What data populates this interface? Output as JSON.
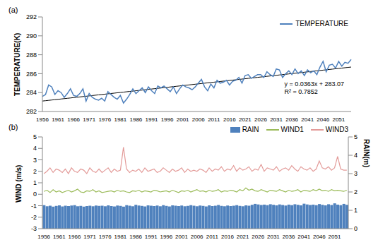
{
  "chart_data": [
    {
      "type": "line",
      "title": "(a)",
      "y_label": "TEMPERATURE(K)",
      "categories": [
        "1956",
        null,
        null,
        null,
        null,
        "1961",
        null,
        null,
        null,
        null,
        "1966",
        null,
        null,
        null,
        null,
        "1971",
        null,
        null,
        null,
        null,
        "1976",
        null,
        null,
        null,
        null,
        "1981",
        null,
        null,
        null,
        null,
        "1986",
        null,
        null,
        null,
        null,
        "1991",
        null,
        null,
        null,
        null,
        "1996",
        null,
        null,
        null,
        null,
        "2001",
        null,
        null,
        null,
        null,
        "2006",
        null,
        null,
        null,
        null,
        "2011",
        null,
        null,
        null,
        null,
        "2016",
        null,
        null,
        null,
        null,
        "2021",
        null,
        null,
        null,
        null,
        "2026",
        null,
        null,
        null,
        null,
        "2031",
        null,
        null,
        null,
        null,
        "2036",
        null,
        null,
        null,
        null,
        "2041",
        null,
        null,
        null,
        null,
        "2046",
        null,
        null,
        null,
        null,
        "2051",
        null,
        null,
        null,
        null
      ],
      "ylim": [
        282,
        292
      ],
      "yticks": [
        282,
        284,
        286,
        288,
        290,
        292
      ],
      "legend": "top-right",
      "series": [
        {
          "name": "TEMPERATURE",
          "color": "#4F81BD",
          "values": [
            283.6,
            283.8,
            284.8,
            284.6,
            283.8,
            284.2,
            284.0,
            283.5,
            283.9,
            284.4,
            283.7,
            283.6,
            283.9,
            284.4,
            283.1,
            283.9,
            283.5,
            283.3,
            283.2,
            283.4,
            283.1,
            284.1,
            283.8,
            283.5,
            283.3,
            283.7,
            282.9,
            283.3,
            283.8,
            284.4,
            283.9,
            284.2,
            284.5,
            284.0,
            284.6,
            284.2,
            283.9,
            284.7,
            284.5,
            284.7,
            284.4,
            284.1,
            284.6,
            283.9,
            284.4,
            284.8,
            284.6,
            284.5,
            284.3,
            284.6,
            285.0,
            285.4,
            284.6,
            284.2,
            284.9,
            284.5,
            285.3,
            285.0,
            285.1,
            285.3,
            284.8,
            285.2,
            285.3,
            285.6,
            285.0,
            285.8,
            285.9,
            285.5,
            285.7,
            285.9,
            285.9,
            285.6,
            286.2,
            285.9,
            285.7,
            286.5,
            286.4,
            285.6,
            286.0,
            286.3,
            285.9,
            286.5,
            286.0,
            286.3,
            285.8,
            286.4,
            286.1,
            286.3,
            285.9,
            286.7,
            287.3,
            286.2,
            286.9,
            287.0,
            286.6,
            287.3,
            286.8,
            287.2,
            287.1,
            287.5
          ]
        }
      ],
      "trendline": {
        "slope": 0.0363,
        "intercept": 283.07,
        "color": "#000000"
      },
      "annotations": [
        "y = 0.0363x + 283.07",
        "R² = 0.7852"
      ]
    },
    {
      "type": "combo",
      "title": "(b)",
      "y_label": "WIND (m/s)",
      "y2_label": "RAIN(m)",
      "categories": [
        "1956",
        null,
        null,
        null,
        null,
        "1961",
        null,
        null,
        null,
        null,
        "1966",
        null,
        null,
        null,
        null,
        "1971",
        null,
        null,
        null,
        null,
        "1976",
        null,
        null,
        null,
        null,
        "1981",
        null,
        null,
        null,
        null,
        "1986",
        null,
        null,
        null,
        null,
        "1991",
        null,
        null,
        null,
        null,
        "1996",
        null,
        null,
        null,
        null,
        "2001",
        null,
        null,
        null,
        null,
        "2006",
        null,
        null,
        null,
        null,
        "2011",
        null,
        null,
        null,
        null,
        "2016",
        null,
        null,
        null,
        null,
        "2021",
        null,
        null,
        null,
        null,
        "2026",
        null,
        null,
        null,
        null,
        "2031",
        null,
        null,
        null,
        null,
        "2036",
        null,
        null,
        null,
        null,
        "2041",
        null,
        null,
        null,
        null,
        "2046",
        null,
        null,
        null,
        null,
        "2051",
        null,
        null,
        null,
        null
      ],
      "ylim": [
        -3,
        5
      ],
      "yticks": [
        -3,
        -2,
        -1,
        0,
        1,
        2,
        3,
        4,
        5
      ],
      "y2lim": [
        0,
        5
      ],
      "y2ticks": [
        0,
        1,
        2,
        3,
        4,
        5
      ],
      "legend": "top-right",
      "series": [
        {
          "name": "RAIN",
          "type": "bar",
          "axis": "y2",
          "color": "#4F81BD",
          "values": [
            1.28,
            1.22,
            1.25,
            1.2,
            1.24,
            1.27,
            1.21,
            1.25,
            1.23,
            1.26,
            1.28,
            1.22,
            1.24,
            1.2,
            1.23,
            1.25,
            1.22,
            1.26,
            1.24,
            1.25,
            1.22,
            1.27,
            1.23,
            1.21,
            1.26,
            1.24,
            1.2,
            1.28,
            1.25,
            1.22,
            1.3,
            1.26,
            1.24,
            1.21,
            1.27,
            1.25,
            1.23,
            1.26,
            1.22,
            1.28,
            1.24,
            1.21,
            1.27,
            1.25,
            1.23,
            1.26,
            1.22,
            1.24,
            1.28,
            1.25,
            1.22,
            1.26,
            1.24,
            1.21,
            1.27,
            1.23,
            1.25,
            1.29,
            1.24,
            1.22,
            1.26,
            1.23,
            1.25,
            1.28,
            1.24,
            1.22,
            1.27,
            1.25,
            1.3,
            1.35,
            1.32,
            1.29,
            1.31,
            1.28,
            1.33,
            1.3,
            1.27,
            1.32,
            1.29,
            1.26,
            1.31,
            1.28,
            1.33,
            1.3,
            1.27,
            1.36,
            1.32,
            1.29,
            1.31,
            1.28,
            1.34,
            1.3,
            1.27,
            1.33,
            1.29,
            1.38,
            1.31,
            1.28,
            1.35,
            1.3
          ]
        },
        {
          "name": "WIND1",
          "type": "line",
          "color": "#9BBB59",
          "values": [
            0.25,
            0.35,
            0.15,
            0.4,
            0.2,
            0.3,
            0.15,
            0.25,
            0.35,
            0.2,
            0.3,
            0.45,
            0.2,
            0.15,
            0.3,
            0.25,
            0.4,
            0.2,
            0.3,
            0.15,
            0.2,
            0.25,
            0.3,
            0.2,
            0.35,
            0.25,
            0.3,
            0.2,
            0.15,
            0.3,
            0.25,
            0.35,
            0.2,
            0.3,
            0.25,
            0.2,
            0.35,
            0.3,
            0.2,
            0.25,
            0.3,
            0.2,
            0.35,
            0.25,
            0.15,
            0.3,
            0.25,
            0.35,
            0.2,
            0.3,
            0.4,
            0.25,
            0.3,
            0.2,
            0.35,
            0.25,
            0.3,
            0.4,
            0.2,
            0.3,
            0.25,
            0.35,
            0.3,
            0.2,
            0.4,
            0.3,
            0.55,
            0.35,
            0.45,
            0.3,
            0.25,
            0.4,
            0.3,
            0.2,
            0.35,
            0.3,
            0.25,
            0.4,
            0.3,
            0.2,
            0.35,
            0.25,
            0.3,
            0.4,
            0.2,
            0.35,
            0.3,
            0.25,
            0.4,
            0.3,
            0.45,
            0.3,
            0.35,
            0.25,
            0.4,
            0.3,
            0.35,
            0.3,
            0.25,
            0.35
          ]
        },
        {
          "name": "WIND3",
          "type": "line",
          "color": "#E39B99",
          "values": [
            1.8,
            2.0,
            2.3,
            1.9,
            2.2,
            2.1,
            1.9,
            2.2,
            1.8,
            2.3,
            2.0,
            1.9,
            2.2,
            2.1,
            1.8,
            2.3,
            2.0,
            1.9,
            2.2,
            1.9,
            2.1,
            2.3,
            1.9,
            2.2,
            2.0,
            2.1,
            4.1,
            2.2,
            1.9,
            2.1,
            2.0,
            2.2,
            1.9,
            2.3,
            2.0,
            2.1,
            2.2,
            1.9,
            2.0,
            2.3,
            2.1,
            1.9,
            2.2,
            2.0,
            2.1,
            2.3,
            1.9,
            2.2,
            2.0,
            2.1,
            2.0,
            2.2,
            2.1,
            1.9,
            2.3,
            2.0,
            2.2,
            2.1,
            2.4,
            2.0,
            2.2,
            2.1,
            2.5,
            2.0,
            2.3,
            2.1,
            2.2,
            2.4,
            2.0,
            2.2,
            2.1,
            2.6,
            2.0,
            2.3,
            2.2,
            2.1,
            2.4,
            2.0,
            2.2,
            2.3,
            2.1,
            2.5,
            2.2,
            2.0,
            2.4,
            2.2,
            2.1,
            2.3,
            2.0,
            2.2,
            2.9,
            2.3,
            2.2,
            2.4,
            2.1,
            2.3,
            3.3,
            2.2,
            2.1,
            2.1
          ]
        }
      ]
    }
  ]
}
